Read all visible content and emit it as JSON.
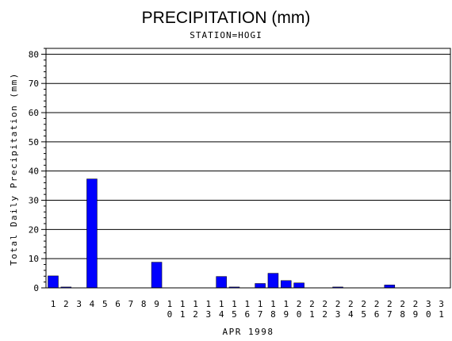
{
  "chart_data": {
    "type": "bar",
    "title": "PRECIPITATION (mm)",
    "subtitle": "STATION=HOGI",
    "xlabel": "APR 1998",
    "ylabel": "Total Daily Precipitation (mm)",
    "ylim": [
      0,
      82
    ],
    "yticks": [
      0,
      10,
      20,
      30,
      40,
      50,
      60,
      70,
      80
    ],
    "grid": true,
    "bar_color": "#0000ff",
    "categories": [
      "1",
      "2",
      "3",
      "4",
      "5",
      "6",
      "7",
      "8",
      "9",
      "10",
      "11",
      "12",
      "13",
      "14",
      "15",
      "16",
      "17",
      "18",
      "19",
      "20",
      "21",
      "22",
      "23",
      "24",
      "25",
      "26",
      "27",
      "28",
      "29",
      "30",
      "31"
    ],
    "values": [
      4.1,
      0.3,
      0,
      37.3,
      0,
      0,
      0,
      0,
      8.8,
      0,
      0,
      0,
      0,
      3.9,
      0.3,
      0,
      1.5,
      5.0,
      2.5,
      1.7,
      0,
      0,
      0.3,
      0,
      0,
      0,
      1.0,
      0,
      0,
      0,
      0
    ]
  }
}
